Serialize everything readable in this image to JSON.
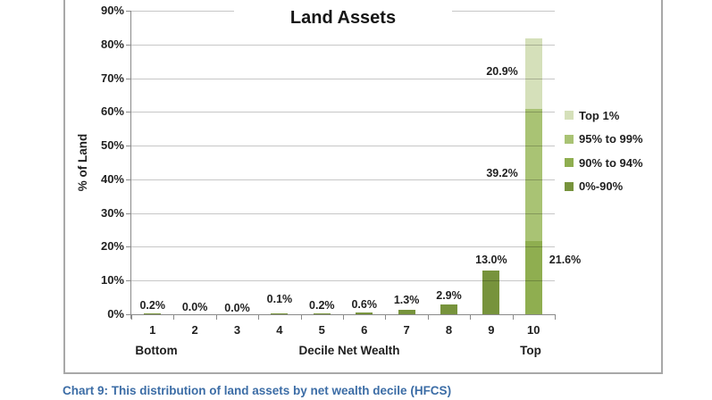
{
  "page": {
    "caption": "Chart 9: This distribution of land assets by net wealth decile (HFCS)"
  },
  "colors": {
    "frame_gray": "#a8a8a8",
    "axis_gray": "#8a8a8a",
    "gridline_gray": "#c7c7c7",
    "caption_blue": "#3c6da6",
    "text": "#1f1f1f"
  },
  "chart_data": {
    "type": "bar",
    "stacked": true,
    "title": "Land Assets",
    "ylabel": "% of Land",
    "xlabel": "Decile Net Wealth",
    "x_end_labels": [
      "Bottom",
      "Top"
    ],
    "categories": [
      "1",
      "2",
      "3",
      "4",
      "5",
      "6",
      "7",
      "8",
      "9",
      "10"
    ],
    "ylim": [
      0,
      90
    ],
    "ytick_step": 10,
    "ytick_labels": [
      "0%",
      "10%",
      "20%",
      "30%",
      "40%",
      "50%",
      "60%",
      "70%",
      "80%",
      "90%"
    ],
    "grid": true,
    "legend_position": "right",
    "series": [
      {
        "name": "0%-90%",
        "color": "#77933C",
        "values": [
          0.2,
          0.0,
          0.0,
          0.1,
          0.2,
          0.6,
          1.3,
          2.9,
          13.0,
          0
        ]
      },
      {
        "name": "90% to 94%",
        "color": "#8FAE50",
        "values": [
          0,
          0,
          0,
          0,
          0,
          0,
          0,
          0,
          0,
          21.6
        ]
      },
      {
        "name": "95% to 99%",
        "color": "#A9C374",
        "values": [
          0,
          0,
          0,
          0,
          0,
          0,
          0,
          0,
          0,
          39.2
        ]
      },
      {
        "name": "Top 1%",
        "color": "#D5E0BA",
        "values": [
          0,
          0,
          0,
          0,
          0,
          0,
          0,
          0,
          0,
          20.9
        ]
      }
    ],
    "legend": [
      {
        "label": "Top 1%",
        "series": "Top 1%"
      },
      {
        "label": "95% to 99%",
        "series": "95% to 99%"
      },
      {
        "label": "90% to 94%",
        "series": "90% to 94%"
      },
      {
        "label": "0%-90%",
        "series": "0%-90%"
      }
    ],
    "data_labels": [
      {
        "category": "1",
        "text": "0.2%",
        "placement": "above",
        "dy": 0
      },
      {
        "category": "2",
        "text": "0.0%",
        "placement": "above",
        "dy": 1
      },
      {
        "category": "3",
        "text": "0.0%",
        "placement": "above",
        "dy": 2
      },
      {
        "category": "4",
        "text": "0.1%",
        "placement": "above",
        "dy": -8
      },
      {
        "category": "5",
        "text": "0.2%",
        "placement": "above",
        "dy": 0
      },
      {
        "category": "6",
        "text": "0.6%",
        "placement": "above",
        "dy": 0
      },
      {
        "category": "7",
        "text": "1.3%",
        "placement": "above",
        "dy": -2
      },
      {
        "category": "8",
        "text": "2.9%",
        "placement": "above",
        "dy": -1
      },
      {
        "category": "9",
        "text": "13.0%",
        "placement": "above",
        "dy": -3
      },
      {
        "category": "10",
        "series": "90% to 94%",
        "text": "21.6%",
        "placement": "right",
        "dy": -20
      },
      {
        "category": "10",
        "series": "95% to 99%",
        "text": "39.2%",
        "placement": "left",
        "dy": -2
      },
      {
        "category": "10",
        "series": "Top 1%",
        "text": "20.9%",
        "placement": "left",
        "dy": -3
      }
    ]
  }
}
